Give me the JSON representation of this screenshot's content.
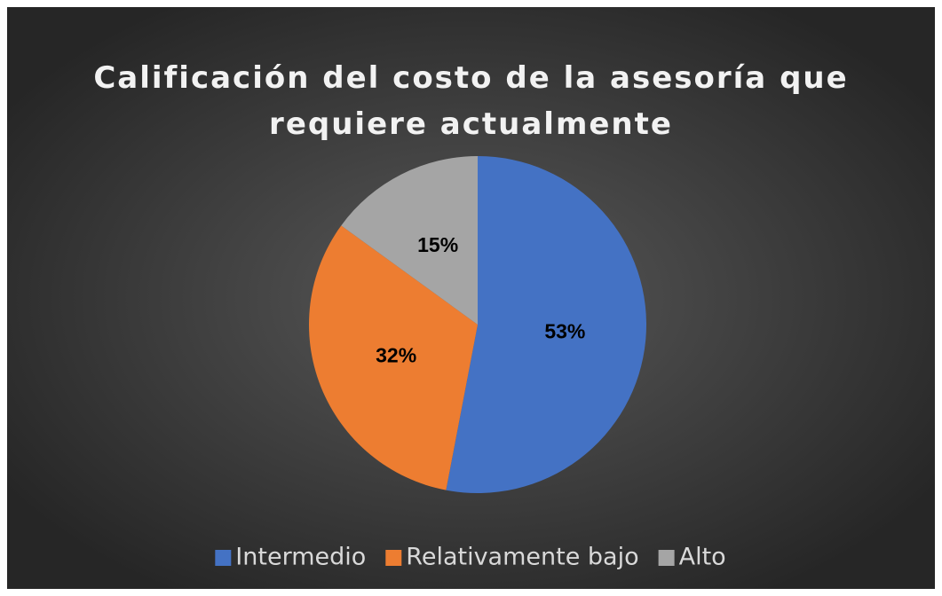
{
  "chart_data": {
    "type": "pie",
    "title": "Calificación del costo de la asesoría que requiere actualmente",
    "categories": [
      "Intermedio",
      "Relativamente bajo",
      "Alto"
    ],
    "values": [
      53,
      32,
      15
    ],
    "value_labels": [
      "53%",
      "32%",
      "15%"
    ],
    "colors": [
      "#4472c4",
      "#ed7d31",
      "#a5a5a5"
    ],
    "legend": "bottom"
  }
}
